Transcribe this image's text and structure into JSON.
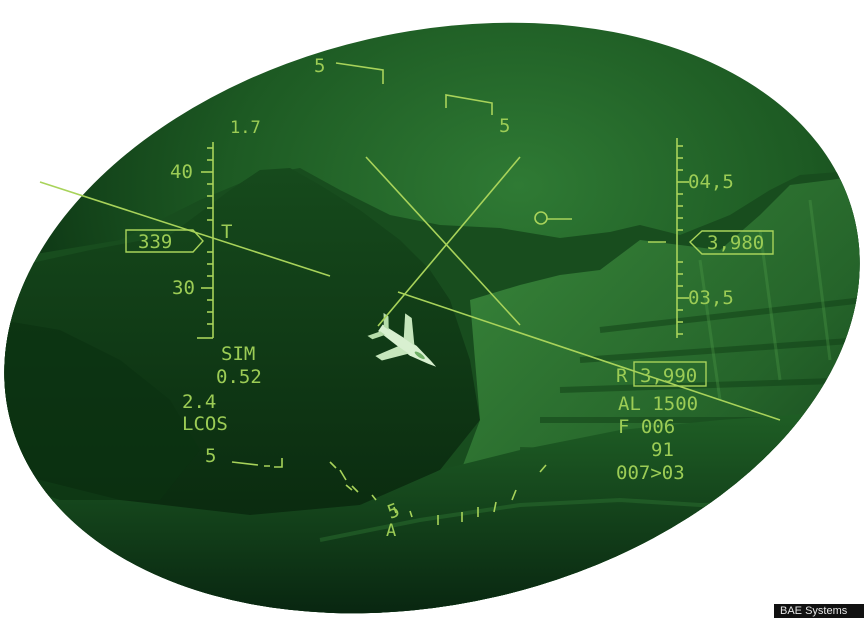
{
  "hud": {
    "heading_left": "5",
    "heading_right": "5",
    "speed_top": "1.7",
    "speed_40": "40",
    "speed_current": "339",
    "speed_marker": "T",
    "speed_30": "30",
    "mode": "SIM",
    "mach": "0.52",
    "g_value": "2.4",
    "reticle": "LCOS",
    "alt_upper": "04,5",
    "alt_current": "3,980",
    "alt_lower": "03,5",
    "radar_prefix": "R",
    "radar_alt": "3,990",
    "al_value": "AL 1500",
    "f_value": "F 006",
    "value_91": "91",
    "value_007": "007>03",
    "bottom_left_marker": "5",
    "bank_marker": "5",
    "bank_bottom": "A"
  },
  "credit": {
    "text": "BAE Systems"
  },
  "colors": {
    "hud": "#a8d35a",
    "background_dark": "#03160a",
    "background_mid": "#1d5a23"
  }
}
